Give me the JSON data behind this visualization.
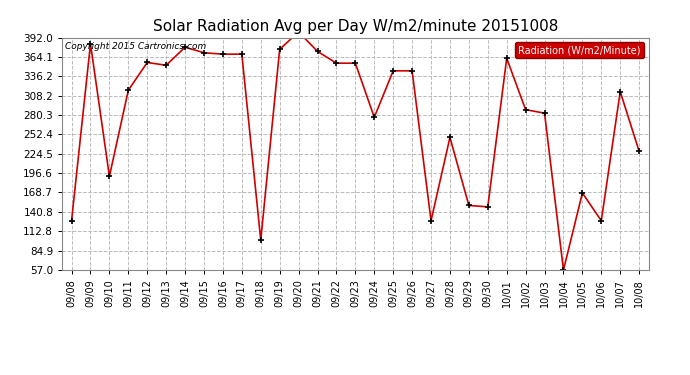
{
  "title": "Solar Radiation Avg per Day W/m2/minute 20151008",
  "copyright": "Copyright 2015 Cartronics.com",
  "legend_label": "Radiation (W/m2/Minute)",
  "dates": [
    "09/08",
    "09/09",
    "09/10",
    "09/11",
    "09/12",
    "09/13",
    "09/14",
    "09/15",
    "09/16",
    "09/17",
    "09/18",
    "09/19",
    "09/20",
    "09/21",
    "09/22",
    "09/23",
    "09/24",
    "09/25",
    "09/26",
    "09/27",
    "09/28",
    "09/29",
    "09/30",
    "10/01",
    "10/02",
    "10/03",
    "10/04",
    "10/05",
    "10/06",
    "10/07",
    "10/08"
  ],
  "values": [
    128,
    383,
    192,
    316,
    356,
    352,
    378,
    370,
    368,
    368,
    100,
    375,
    400,
    372,
    355,
    355,
    277,
    344,
    344,
    128,
    248,
    150,
    148,
    362,
    288,
    283,
    57,
    168,
    128,
    314,
    228
  ],
  "line_color": "#cc0000",
  "marker_color": "#000000",
  "bg_color": "#ffffff",
  "grid_color": "#bbbbbb",
  "ylim_min": 57.0,
  "ylim_max": 392.0,
  "yticks": [
    57.0,
    84.9,
    112.8,
    140.8,
    168.7,
    196.6,
    224.5,
    252.4,
    280.3,
    308.2,
    336.2,
    364.1,
    392.0
  ],
  "legend_bg": "#cc0000",
  "legend_text_color": "#ffffff",
  "title_fontsize": 11,
  "axis_fontsize": 7.5,
  "xtick_fontsize": 7
}
